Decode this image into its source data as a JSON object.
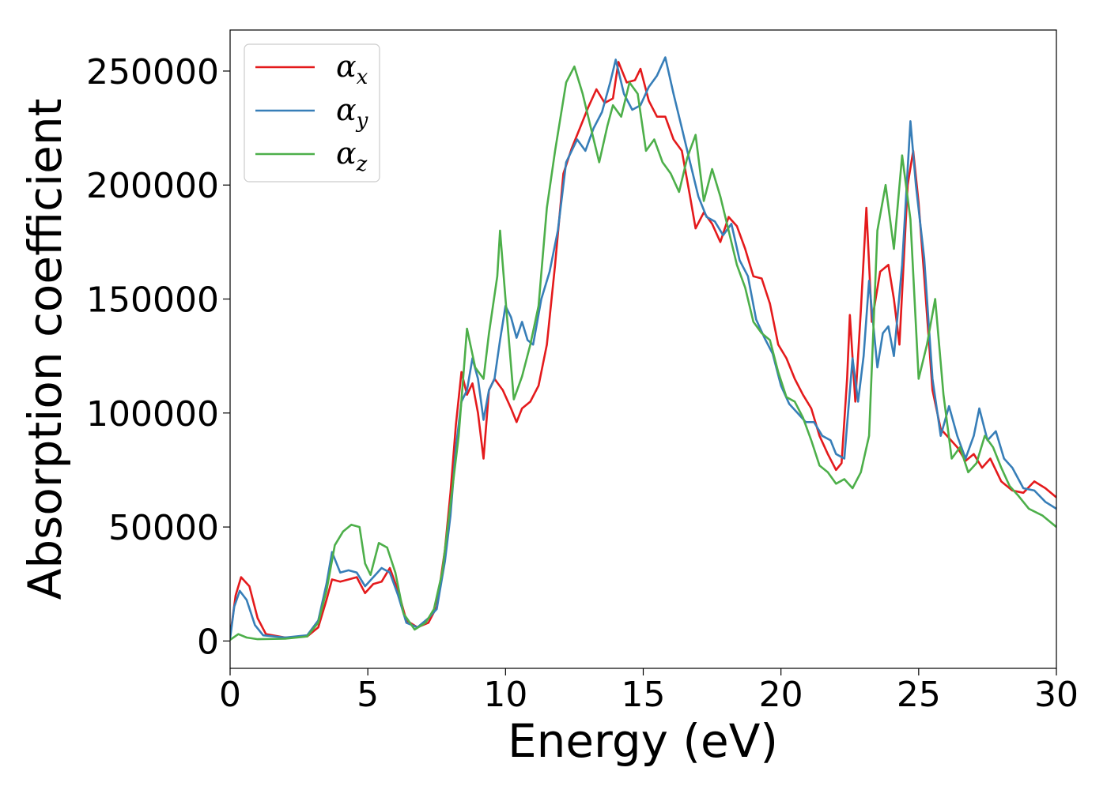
{
  "chart_data": {
    "type": "line",
    "xlabel": "Energy (eV)",
    "ylabel": "Absorption coefficient",
    "xlim": [
      0,
      30
    ],
    "ylim": [
      -12000,
      268000
    ],
    "xticks": [
      0,
      5,
      10,
      15,
      20,
      25,
      30
    ],
    "xtick_labels": [
      "0",
      "5",
      "10",
      "15",
      "20",
      "25",
      "30"
    ],
    "yticks": [
      0,
      50000,
      100000,
      150000,
      200000,
      250000
    ],
    "ytick_labels": [
      "0",
      "50000",
      "100000",
      "150000",
      "200000",
      "250000"
    ],
    "grid": false,
    "legend_position": "top-left",
    "series": [
      {
        "name": "α",
        "subscript": "x",
        "color": "#e41a1c",
        "points": [
          [
            0,
            2000
          ],
          [
            0.2,
            20000
          ],
          [
            0.4,
            28000
          ],
          [
            0.7,
            24000
          ],
          [
            1.0,
            10000
          ],
          [
            1.3,
            3000
          ],
          [
            2.0,
            1500
          ],
          [
            2.8,
            2000
          ],
          [
            3.2,
            6000
          ],
          [
            3.5,
            18000
          ],
          [
            3.7,
            27000
          ],
          [
            4.0,
            26000
          ],
          [
            4.3,
            27000
          ],
          [
            4.6,
            28000
          ],
          [
            4.9,
            21000
          ],
          [
            5.2,
            25000
          ],
          [
            5.5,
            26000
          ],
          [
            5.8,
            32000
          ],
          [
            6.1,
            22000
          ],
          [
            6.4,
            9000
          ],
          [
            6.8,
            6000
          ],
          [
            7.2,
            8000
          ],
          [
            7.5,
            15000
          ],
          [
            7.8,
            40000
          ],
          [
            8.0,
            65000
          ],
          [
            8.2,
            95000
          ],
          [
            8.4,
            118000
          ],
          [
            8.6,
            108000
          ],
          [
            8.8,
            113000
          ],
          [
            9.0,
            100000
          ],
          [
            9.2,
            80000
          ],
          [
            9.4,
            110000
          ],
          [
            9.6,
            115000
          ],
          [
            9.9,
            110000
          ],
          [
            10.2,
            102000
          ],
          [
            10.4,
            96000
          ],
          [
            10.6,
            102000
          ],
          [
            10.9,
            105000
          ],
          [
            11.2,
            112000
          ],
          [
            11.5,
            130000
          ],
          [
            11.8,
            165000
          ],
          [
            12.1,
            205000
          ],
          [
            12.4,
            216000
          ],
          [
            12.7,
            225000
          ],
          [
            13.0,
            234000
          ],
          [
            13.3,
            242000
          ],
          [
            13.6,
            236000
          ],
          [
            13.9,
            238000
          ],
          [
            14.1,
            254000
          ],
          [
            14.4,
            245000
          ],
          [
            14.7,
            246000
          ],
          [
            14.9,
            251000
          ],
          [
            15.2,
            237000
          ],
          [
            15.5,
            230000
          ],
          [
            15.8,
            230000
          ],
          [
            16.1,
            220000
          ],
          [
            16.4,
            215000
          ],
          [
            16.7,
            195000
          ],
          [
            16.9,
            181000
          ],
          [
            17.2,
            188000
          ],
          [
            17.5,
            183000
          ],
          [
            17.8,
            175000
          ],
          [
            18.1,
            186000
          ],
          [
            18.4,
            182000
          ],
          [
            18.7,
            172000
          ],
          [
            19.0,
            160000
          ],
          [
            19.3,
            159000
          ],
          [
            19.6,
            148000
          ],
          [
            19.9,
            130000
          ],
          [
            20.2,
            124000
          ],
          [
            20.5,
            115000
          ],
          [
            20.8,
            108000
          ],
          [
            21.1,
            102000
          ],
          [
            21.4,
            90000
          ],
          [
            21.7,
            82000
          ],
          [
            22.0,
            75000
          ],
          [
            22.2,
            78000
          ],
          [
            22.4,
            115000
          ],
          [
            22.5,
            143000
          ],
          [
            22.7,
            105000
          ],
          [
            22.9,
            145000
          ],
          [
            23.1,
            190000
          ],
          [
            23.3,
            140000
          ],
          [
            23.6,
            162000
          ],
          [
            23.9,
            165000
          ],
          [
            24.1,
            150000
          ],
          [
            24.3,
            130000
          ],
          [
            24.6,
            200000
          ],
          [
            24.8,
            215000
          ],
          [
            25.0,
            192000
          ],
          [
            25.2,
            160000
          ],
          [
            25.5,
            110000
          ],
          [
            25.8,
            93000
          ],
          [
            26.1,
            89000
          ],
          [
            26.4,
            85000
          ],
          [
            26.7,
            79000
          ],
          [
            27.0,
            82000
          ],
          [
            27.3,
            76000
          ],
          [
            27.6,
            80000
          ],
          [
            28.0,
            70000
          ],
          [
            28.4,
            66000
          ],
          [
            28.8,
            65000
          ],
          [
            29.2,
            70000
          ],
          [
            29.6,
            67000
          ],
          [
            30.0,
            63000
          ]
        ]
      },
      {
        "name": "α",
        "subscript": "y",
        "color": "#377eb8",
        "points": [
          [
            0,
            1000
          ],
          [
            0.15,
            15000
          ],
          [
            0.35,
            22000
          ],
          [
            0.6,
            18000
          ],
          [
            0.9,
            7000
          ],
          [
            1.2,
            2500
          ],
          [
            2.0,
            1500
          ],
          [
            2.8,
            2500
          ],
          [
            3.2,
            9000
          ],
          [
            3.5,
            25000
          ],
          [
            3.7,
            39000
          ],
          [
            4.0,
            30000
          ],
          [
            4.3,
            31000
          ],
          [
            4.6,
            30000
          ],
          [
            4.9,
            24000
          ],
          [
            5.2,
            28000
          ],
          [
            5.5,
            32000
          ],
          [
            5.8,
            30000
          ],
          [
            6.1,
            20000
          ],
          [
            6.4,
            8000
          ],
          [
            6.8,
            6000
          ],
          [
            7.2,
            10000
          ],
          [
            7.5,
            14000
          ],
          [
            7.8,
            35000
          ],
          [
            8.0,
            55000
          ],
          [
            8.2,
            85000
          ],
          [
            8.4,
            105000
          ],
          [
            8.6,
            110000
          ],
          [
            8.8,
            124000
          ],
          [
            9.0,
            115000
          ],
          [
            9.2,
            97000
          ],
          [
            9.4,
            110000
          ],
          [
            9.6,
            115000
          ],
          [
            9.8,
            132000
          ],
          [
            10.0,
            147000
          ],
          [
            10.2,
            142000
          ],
          [
            10.4,
            133000
          ],
          [
            10.6,
            140000
          ],
          [
            10.8,
            132000
          ],
          [
            11.0,
            130000
          ],
          [
            11.3,
            150000
          ],
          [
            11.6,
            162000
          ],
          [
            11.9,
            180000
          ],
          [
            12.2,
            210000
          ],
          [
            12.6,
            220000
          ],
          [
            12.9,
            215000
          ],
          [
            13.2,
            225000
          ],
          [
            13.5,
            232000
          ],
          [
            13.8,
            245000
          ],
          [
            14.0,
            255000
          ],
          [
            14.3,
            240000
          ],
          [
            14.6,
            233000
          ],
          [
            14.9,
            235000
          ],
          [
            15.2,
            243000
          ],
          [
            15.5,
            248000
          ],
          [
            15.8,
            256000
          ],
          [
            16.1,
            240000
          ],
          [
            16.4,
            225000
          ],
          [
            16.7,
            210000
          ],
          [
            17.0,
            195000
          ],
          [
            17.3,
            186000
          ],
          [
            17.6,
            184000
          ],
          [
            17.9,
            178000
          ],
          [
            18.2,
            183000
          ],
          [
            18.5,
            167000
          ],
          [
            18.8,
            160000
          ],
          [
            19.1,
            141000
          ],
          [
            19.4,
            133000
          ],
          [
            19.7,
            126000
          ],
          [
            20.0,
            112000
          ],
          [
            20.3,
            104000
          ],
          [
            20.6,
            100000
          ],
          [
            20.9,
            96000
          ],
          [
            21.2,
            96000
          ],
          [
            21.5,
            90000
          ],
          [
            21.8,
            88000
          ],
          [
            22.0,
            82000
          ],
          [
            22.3,
            80000
          ],
          [
            22.6,
            124000
          ],
          [
            22.8,
            105000
          ],
          [
            23.0,
            125000
          ],
          [
            23.2,
            158000
          ],
          [
            23.5,
            120000
          ],
          [
            23.7,
            135000
          ],
          [
            23.9,
            138000
          ],
          [
            24.1,
            125000
          ],
          [
            24.4,
            165000
          ],
          [
            24.7,
            228000
          ],
          [
            24.9,
            200000
          ],
          [
            25.2,
            168000
          ],
          [
            25.5,
            115000
          ],
          [
            25.8,
            90000
          ],
          [
            26.1,
            103000
          ],
          [
            26.4,
            90000
          ],
          [
            26.7,
            80000
          ],
          [
            27.0,
            90000
          ],
          [
            27.2,
            102000
          ],
          [
            27.5,
            88000
          ],
          [
            27.8,
            92000
          ],
          [
            28.1,
            80000
          ],
          [
            28.4,
            76000
          ],
          [
            28.8,
            67000
          ],
          [
            29.2,
            66000
          ],
          [
            29.6,
            61000
          ],
          [
            30.0,
            58000
          ]
        ]
      },
      {
        "name": "α",
        "subscript": "z",
        "color": "#4daf4a",
        "points": [
          [
            0,
            500
          ],
          [
            0.3,
            3000
          ],
          [
            0.6,
            1500
          ],
          [
            1.0,
            800
          ],
          [
            2.0,
            1000
          ],
          [
            2.8,
            2000
          ],
          [
            3.2,
            8000
          ],
          [
            3.5,
            22000
          ],
          [
            3.8,
            42000
          ],
          [
            4.1,
            48000
          ],
          [
            4.4,
            51000
          ],
          [
            4.7,
            50000
          ],
          [
            4.9,
            34000
          ],
          [
            5.1,
            29000
          ],
          [
            5.4,
            43000
          ],
          [
            5.7,
            41000
          ],
          [
            6.0,
            30000
          ],
          [
            6.3,
            12000
          ],
          [
            6.7,
            5000
          ],
          [
            7.1,
            8000
          ],
          [
            7.4,
            14000
          ],
          [
            7.7,
            30000
          ],
          [
            8.0,
            60000
          ],
          [
            8.3,
            90000
          ],
          [
            8.6,
            137000
          ],
          [
            8.9,
            120000
          ],
          [
            9.2,
            115000
          ],
          [
            9.4,
            135000
          ],
          [
            9.7,
            160000
          ],
          [
            9.8,
            180000
          ],
          [
            10.0,
            150000
          ],
          [
            10.3,
            106000
          ],
          [
            10.6,
            116000
          ],
          [
            10.9,
            130000
          ],
          [
            11.2,
            147000
          ],
          [
            11.5,
            190000
          ],
          [
            11.8,
            215000
          ],
          [
            12.2,
            245000
          ],
          [
            12.5,
            252000
          ],
          [
            12.8,
            240000
          ],
          [
            13.1,
            225000
          ],
          [
            13.4,
            210000
          ],
          [
            13.7,
            226000
          ],
          [
            13.9,
            235000
          ],
          [
            14.2,
            230000
          ],
          [
            14.5,
            245000
          ],
          [
            14.8,
            240000
          ],
          [
            15.1,
            215000
          ],
          [
            15.4,
            220000
          ],
          [
            15.7,
            210000
          ],
          [
            16.0,
            205000
          ],
          [
            16.3,
            197000
          ],
          [
            16.6,
            212000
          ],
          [
            16.9,
            222000
          ],
          [
            17.2,
            193000
          ],
          [
            17.5,
            207000
          ],
          [
            17.8,
            195000
          ],
          [
            18.1,
            180000
          ],
          [
            18.4,
            165000
          ],
          [
            18.7,
            155000
          ],
          [
            19.0,
            140000
          ],
          [
            19.3,
            135000
          ],
          [
            19.6,
            132000
          ],
          [
            19.9,
            118000
          ],
          [
            20.2,
            107000
          ],
          [
            20.5,
            105000
          ],
          [
            20.8,
            98000
          ],
          [
            21.1,
            88000
          ],
          [
            21.4,
            77000
          ],
          [
            21.7,
            74000
          ],
          [
            22.0,
            69000
          ],
          [
            22.3,
            71000
          ],
          [
            22.6,
            67000
          ],
          [
            22.9,
            74000
          ],
          [
            23.2,
            90000
          ],
          [
            23.5,
            180000
          ],
          [
            23.8,
            200000
          ],
          [
            24.1,
            172000
          ],
          [
            24.4,
            213000
          ],
          [
            24.7,
            185000
          ],
          [
            25.0,
            115000
          ],
          [
            25.3,
            130000
          ],
          [
            25.6,
            150000
          ],
          [
            25.9,
            108000
          ],
          [
            26.2,
            80000
          ],
          [
            26.5,
            85000
          ],
          [
            26.8,
            74000
          ],
          [
            27.1,
            78000
          ],
          [
            27.4,
            90000
          ],
          [
            27.7,
            85000
          ],
          [
            28.0,
            76000
          ],
          [
            28.3,
            68000
          ],
          [
            28.6,
            64000
          ],
          [
            29.0,
            58000
          ],
          [
            29.5,
            55000
          ],
          [
            30.0,
            50000
          ]
        ]
      }
    ]
  }
}
